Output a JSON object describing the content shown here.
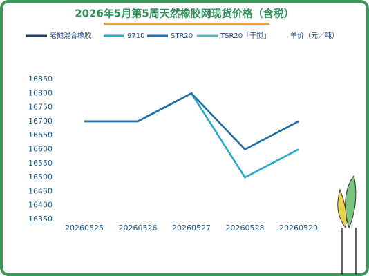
{
  "chart_data": {
    "type": "line",
    "title": "2026年5月第5周天然橡胶网现货价格（含税）",
    "unit_label": "单价（元／吨）",
    "categories": [
      "20260525",
      "20260526",
      "20260527",
      "20260528",
      "20260529"
    ],
    "series": [
      {
        "name": "老挝混合橡胶",
        "color": "#1d3f6e",
        "values": [
          16700,
          16700,
          16800,
          16600,
          16700
        ]
      },
      {
        "name": "9710",
        "color": "#2aa7c9",
        "values": [
          16700,
          16700,
          16800,
          16500,
          16600
        ]
      },
      {
        "name": "STR20",
        "color": "#1f6fa8",
        "values": [
          16700,
          16700,
          16800,
          16600,
          16700
        ]
      },
      {
        "name": "TSR20「干搅」",
        "color": "#5fb2c2",
        "values": [
          16700,
          16700,
          16800,
          16500,
          16600
        ]
      }
    ],
    "ylim": [
      16350,
      16850
    ],
    "yticks": [
      16350,
      16400,
      16450,
      16500,
      16550,
      16600,
      16650,
      16700,
      16750,
      16800,
      16850
    ],
    "grid": false
  }
}
